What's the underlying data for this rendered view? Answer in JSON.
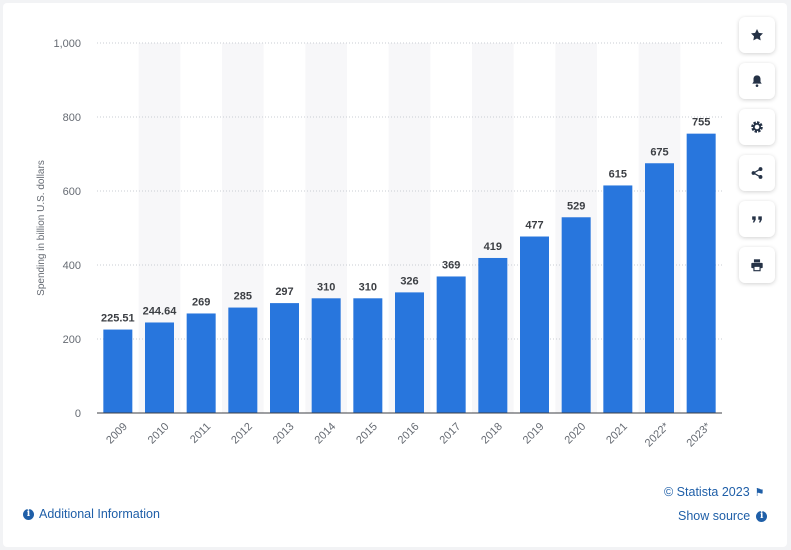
{
  "chart_data": {
    "type": "bar",
    "categories": [
      "2009",
      "2010",
      "2011",
      "2012",
      "2013",
      "2014",
      "2015",
      "2016",
      "2017",
      "2018",
      "2019",
      "2020",
      "2021",
      "2022*",
      "2023*"
    ],
    "values": [
      225.51,
      244.64,
      269,
      285,
      297,
      310,
      310,
      326,
      369,
      419,
      477,
      529,
      615,
      675,
      755
    ],
    "value_labels": [
      "225.51",
      "244.64",
      "269",
      "285",
      "297",
      "310",
      "310",
      "326",
      "369",
      "419",
      "477",
      "529",
      "615",
      "675",
      "755"
    ],
    "ylabel": "Spending in billion U.S. dollars",
    "xlabel": "",
    "ylim": [
      0,
      1000
    ],
    "yticks": [
      0,
      200,
      400,
      600,
      800,
      1000
    ],
    "ytick_labels": [
      "0",
      "200",
      "400",
      "600",
      "800",
      "1,000"
    ],
    "grid": true,
    "bar_color": "#2876dd"
  },
  "footer": {
    "additional_info": "Additional Information",
    "copyright": "© Statista 2023",
    "show_source": "Show source"
  },
  "toolbar": {
    "buttons": [
      "star-icon",
      "bell-icon",
      "gear-icon",
      "share-icon",
      "quote-icon",
      "print-icon"
    ]
  },
  "colors": {
    "accent": "#2876dd",
    "link": "#1f5fa8",
    "band": "#f7f7f9"
  }
}
